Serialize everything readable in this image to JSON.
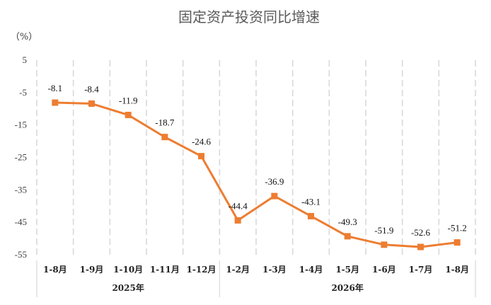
{
  "chart_data": {
    "type": "line",
    "title": "固定资产投资同比增速",
    "unit": "（%）",
    "categories": [
      "1-8月",
      "1-9月",
      "1-10月",
      "1-11月",
      "1-12月",
      "1-2月",
      "1-3月",
      "1-4月",
      "1-5月",
      "1-6月",
      "1-7月",
      "1-8月"
    ],
    "values": [
      -8.1,
      -8.4,
      -11.9,
      -18.7,
      -24.6,
      -44.4,
      -36.9,
      -43.1,
      -49.3,
      -51.9,
      -52.6,
      -51.2
    ],
    "data_labels": [
      "-8.1",
      "-8.4",
      "-11.9",
      "-18.7",
      "-24.6",
      "-44.4",
      "-36.9",
      "-43.1",
      "-49.3",
      "-51.9",
      "-52.6",
      "-51.2"
    ],
    "groups": [
      {
        "label": "2025年",
        "count": 5
      },
      {
        "label": "2026年",
        "count": 7
      }
    ],
    "yticks": [
      5,
      -5,
      -15,
      -25,
      -35,
      -45,
      -55
    ],
    "ylim": [
      -55,
      5
    ],
    "line_color": "#ED7D31",
    "grid_color": "#D9D9D9",
    "grid": "vertical-dashed",
    "marker": "square"
  }
}
